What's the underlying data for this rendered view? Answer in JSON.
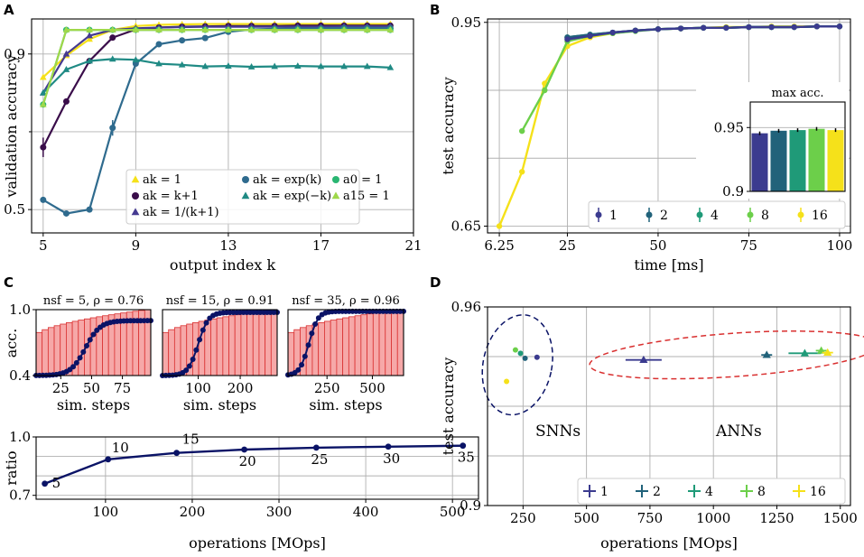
{
  "colors": {
    "c1": "#3b3b8f",
    "c2": "#21627a",
    "c4": "#1f9a78",
    "c8": "#6ccf4a",
    "c16": "#f5e11a",
    "dark": "#0a1366",
    "red": "#d93030",
    "pink": "#f6a8a8"
  },
  "panel_labels": [
    "A",
    "B",
    "C",
    "D"
  ],
  "chart_data": [
    {
      "id": "A",
      "type": "line",
      "xlabel": "output index k",
      "ylabel": "validation accuracy",
      "xticks": [
        "5",
        "9",
        "13",
        "17",
        "21"
      ],
      "yticks": [
        "0.5",
        "0.9"
      ],
      "xlim": [
        4.5,
        21
      ],
      "ylim": [
        0.44,
        0.99
      ],
      "x": [
        5,
        6,
        7,
        8,
        9,
        10,
        11,
        12,
        13,
        14,
        15,
        16,
        17,
        18,
        19,
        20
      ],
      "series": [
        {
          "name": "a_k = 1",
          "label": "ak = 1",
          "color": "#f5e11a",
          "marker": "^",
          "values": [
            0.84,
            0.896,
            0.938,
            0.962,
            0.972,
            0.975,
            0.976,
            0.977,
            0.977,
            0.977,
            0.977,
            0.977,
            0.977,
            0.977,
            0.977,
            0.977
          ]
        },
        {
          "name": "a_k = k+1",
          "label": "ak = k+1",
          "color": "#3a0d4a",
          "marker": "o",
          "values": [
            0.66,
            0.778,
            0.882,
            0.942,
            0.963,
            0.968,
            0.97,
            0.971,
            0.972,
            0.972,
            0.972,
            0.973,
            0.973,
            0.973,
            0.973,
            0.973
          ]
        },
        {
          "name": "a_k = 1/(k+1)",
          "label": "ak = 1/(k+1)",
          "color": "#453a91",
          "marker": "^",
          "values": [
            0.8,
            0.9,
            0.947,
            0.962,
            0.966,
            0.968,
            0.969,
            0.97,
            0.97,
            0.97,
            0.97,
            0.97,
            0.97,
            0.971,
            0.971,
            0.971
          ]
        },
        {
          "name": "a_k = exp(k)",
          "label": "ak = exp(k)",
          "color": "#2f6b8e",
          "marker": "o",
          "values": [
            0.525,
            0.49,
            0.5,
            0.71,
            0.875,
            0.925,
            0.935,
            0.941,
            0.957,
            0.963,
            0.965,
            0.966,
            0.966,
            0.967,
            0.967,
            0.967
          ]
        },
        {
          "name": "a_k = exp(-k)",
          "label": "ak = exp(−k)",
          "color": "#1f8a84",
          "marker": "^",
          "values": [
            0.8,
            0.86,
            0.882,
            0.887,
            0.885,
            0.875,
            0.872,
            0.868,
            0.869,
            0.867,
            0.868,
            0.869,
            0.868,
            0.868,
            0.868,
            0.865
          ]
        },
        {
          "name": "a_0 = 1",
          "label": "a0 = 1",
          "color": "#2ab672",
          "marker": "o",
          "values": [
            0.77,
            0.962,
            0.962,
            0.962,
            0.962,
            0.962,
            0.962,
            0.962,
            0.962,
            0.962,
            0.962,
            0.962,
            0.962,
            0.962,
            0.962,
            0.962
          ]
        },
        {
          "name": "a_15 = 1",
          "label": "a15 = 1",
          "color": "#9fd84a",
          "marker": "^",
          "values": [
            0.77,
            0.962,
            0.962,
            0.962,
            0.962,
            0.962,
            0.962,
            0.962,
            0.962,
            0.962,
            0.962,
            0.962,
            0.962,
            0.962,
            0.962,
            0.962
          ]
        }
      ],
      "legend": {
        "placement": "lower-center",
        "items": [
          "ak = 1",
          "ak = k+1",
          "ak = 1/(k+1)",
          "ak = exp(k)",
          "ak = exp(−k)",
          "a0 = 1",
          "a15 = 1"
        ]
      }
    },
    {
      "id": "B",
      "type": "line",
      "xlabel": "time [ms]",
      "ylabel": "test accuracy",
      "xticks": [
        "6.25",
        "25",
        "50",
        "75",
        "100"
      ],
      "yticks": [
        "0.65",
        "0.95"
      ],
      "xlim": [
        3,
        103
      ],
      "ylim": [
        0.64,
        0.955
      ],
      "x": [
        6.25,
        12.5,
        18.75,
        25,
        31.25,
        37.5,
        43.75,
        50,
        56.25,
        62.5,
        68.75,
        75,
        81.25,
        87.5,
        93.75,
        100
      ],
      "series": [
        {
          "name": "1",
          "color": "#3b3b8f",
          "values": [
            null,
            null,
            null,
            0.925,
            0.93,
            0.935,
            0.938,
            0.94,
            0.941,
            0.942,
            0.942,
            0.943,
            0.943,
            0.943,
            0.944,
            0.944
          ]
        },
        {
          "name": "2",
          "color": "#21627a",
          "values": [
            null,
            null,
            null,
            0.928,
            0.932,
            0.935,
            0.938,
            0.94,
            0.941,
            0.942,
            0.942,
            0.943,
            0.943,
            0.943,
            0.944,
            0.944
          ]
        },
        {
          "name": "4",
          "color": "#1f9a78",
          "values": [
            null,
            null,
            null,
            0.928,
            0.932,
            0.935,
            0.938,
            0.94,
            0.941,
            0.942,
            0.942,
            0.943,
            0.943,
            0.943,
            0.944,
            0.944
          ]
        },
        {
          "name": "8",
          "color": "#6ccf4a",
          "values": [
            null,
            0.79,
            0.85,
            0.922,
            0.93,
            0.934,
            0.937,
            0.94,
            0.941,
            0.942,
            0.942,
            0.943,
            0.943,
            0.943,
            0.944,
            0.944
          ]
        },
        {
          "name": "16",
          "color": "#f5e11a",
          "values": [
            0.65,
            0.73,
            0.86,
            0.915,
            0.928,
            0.934,
            0.938,
            0.94,
            0.941,
            0.942,
            0.943,
            0.943,
            0.944,
            0.944,
            0.944,
            0.944
          ]
        }
      ],
      "legend": {
        "placement": "bottom-right",
        "items": [
          "1",
          "2",
          "4",
          "8",
          "16"
        ]
      },
      "inset": {
        "type": "bar",
        "title": "max acc.",
        "yticks": [
          "0.95",
          "0.9"
        ],
        "ylim": [
          0.9,
          0.97
        ],
        "categories": [
          "1",
          "2",
          "4",
          "8",
          "16"
        ],
        "values": [
          0.9455,
          0.9475,
          0.948,
          0.949,
          0.948
        ]
      }
    },
    {
      "id": "C-top",
      "type": "line",
      "ylabel": "acc.",
      "xlabel": "sim. steps",
      "yticks": [
        "1.0",
        "0.4"
      ],
      "subplots": [
        {
          "title": "nsf = 5, ρ = 0.76",
          "xticks": [
            "25",
            "50",
            "75"
          ],
          "xlim": [
            5,
            98
          ],
          "steps": [
            5,
            10,
            15,
            20,
            25,
            30,
            35,
            40,
            45,
            50,
            55,
            60,
            65,
            70,
            75,
            80,
            85,
            90,
            95
          ],
          "rise_center": 45,
          "rise_width": 6,
          "plateau": 0.9
        },
        {
          "title": "nsf = 15, ρ = 0.91",
          "xticks": [
            "100",
            "200"
          ],
          "xlim": [
            15,
            288
          ],
          "steps": [
            15,
            30,
            45,
            60,
            75,
            90,
            105,
            120,
            135,
            150,
            165,
            180,
            195,
            210,
            225,
            240,
            255,
            270,
            285
          ],
          "rise_center": 100,
          "rise_width": 12,
          "plateau": 0.975
        },
        {
          "title": "nsf = 35, ρ = 0.96",
          "xticks": [
            "250",
            "500"
          ],
          "xlim": [
            35,
            672
          ],
          "steps": [
            35,
            70,
            105,
            140,
            175,
            210,
            245,
            280,
            315,
            350,
            385,
            420,
            455,
            490,
            525,
            560,
            595,
            630,
            665
          ],
          "rise_center": 150,
          "rise_width": 25,
          "plateau": 0.985
        }
      ]
    },
    {
      "id": "C-bottom",
      "type": "line",
      "xlabel": "operations [MOps]",
      "ylabel": "ratio",
      "xticks": [
        "100",
        "200",
        "300",
        "400",
        "500"
      ],
      "yticks": [
        "1.0",
        "0.7"
      ],
      "xlim": [
        20,
        530
      ],
      "ylim": [
        0.7,
        1.0
      ],
      "x": [
        30,
        103,
        182,
        260,
        343,
        426,
        512
      ],
      "values": [
        0.76,
        0.885,
        0.918,
        0.935,
        0.945,
        0.95,
        0.955
      ],
      "point_labels": [
        "5",
        "10",
        "15",
        "20",
        "25",
        "30",
        "35"
      ]
    },
    {
      "id": "D",
      "type": "scatter",
      "xlabel": "operations [MOps]",
      "ylabel": "test accuracy",
      "xticks": [
        "250",
        "500",
        "750",
        "1000",
        "1250",
        "1500"
      ],
      "yticks": [
        "0.96",
        "0.9"
      ],
      "xlim": [
        110,
        1540
      ],
      "ylim": [
        0.9,
        0.96
      ],
      "series": [
        {
          "name": "1",
          "color": "#3b3b8f",
          "snn": [
            305,
            0.9448
          ],
          "ann": [
            725,
            0.944
          ]
        },
        {
          "name": "2",
          "color": "#21627a",
          "snn": [
            258,
            0.9445
          ],
          "ann": [
            1210,
            0.9455
          ]
        },
        {
          "name": "4",
          "color": "#1f9a78",
          "snn": [
            240,
            0.946
          ],
          "ann": [
            1360,
            0.946
          ]
        },
        {
          "name": "8",
          "color": "#6ccf4a",
          "snn": [
            220,
            0.947
          ],
          "ann": [
            1425,
            0.9468
          ]
        },
        {
          "name": "16",
          "color": "#f5e11a",
          "snn": [
            185,
            0.9375
          ],
          "ann": [
            1450,
            0.9462
          ]
        }
      ],
      "annotations": [
        "SNNs",
        "ANNs"
      ],
      "legend": {
        "placement": "bottom-right",
        "items": [
          "1",
          "2",
          "4",
          "8",
          "16"
        ]
      }
    }
  ]
}
